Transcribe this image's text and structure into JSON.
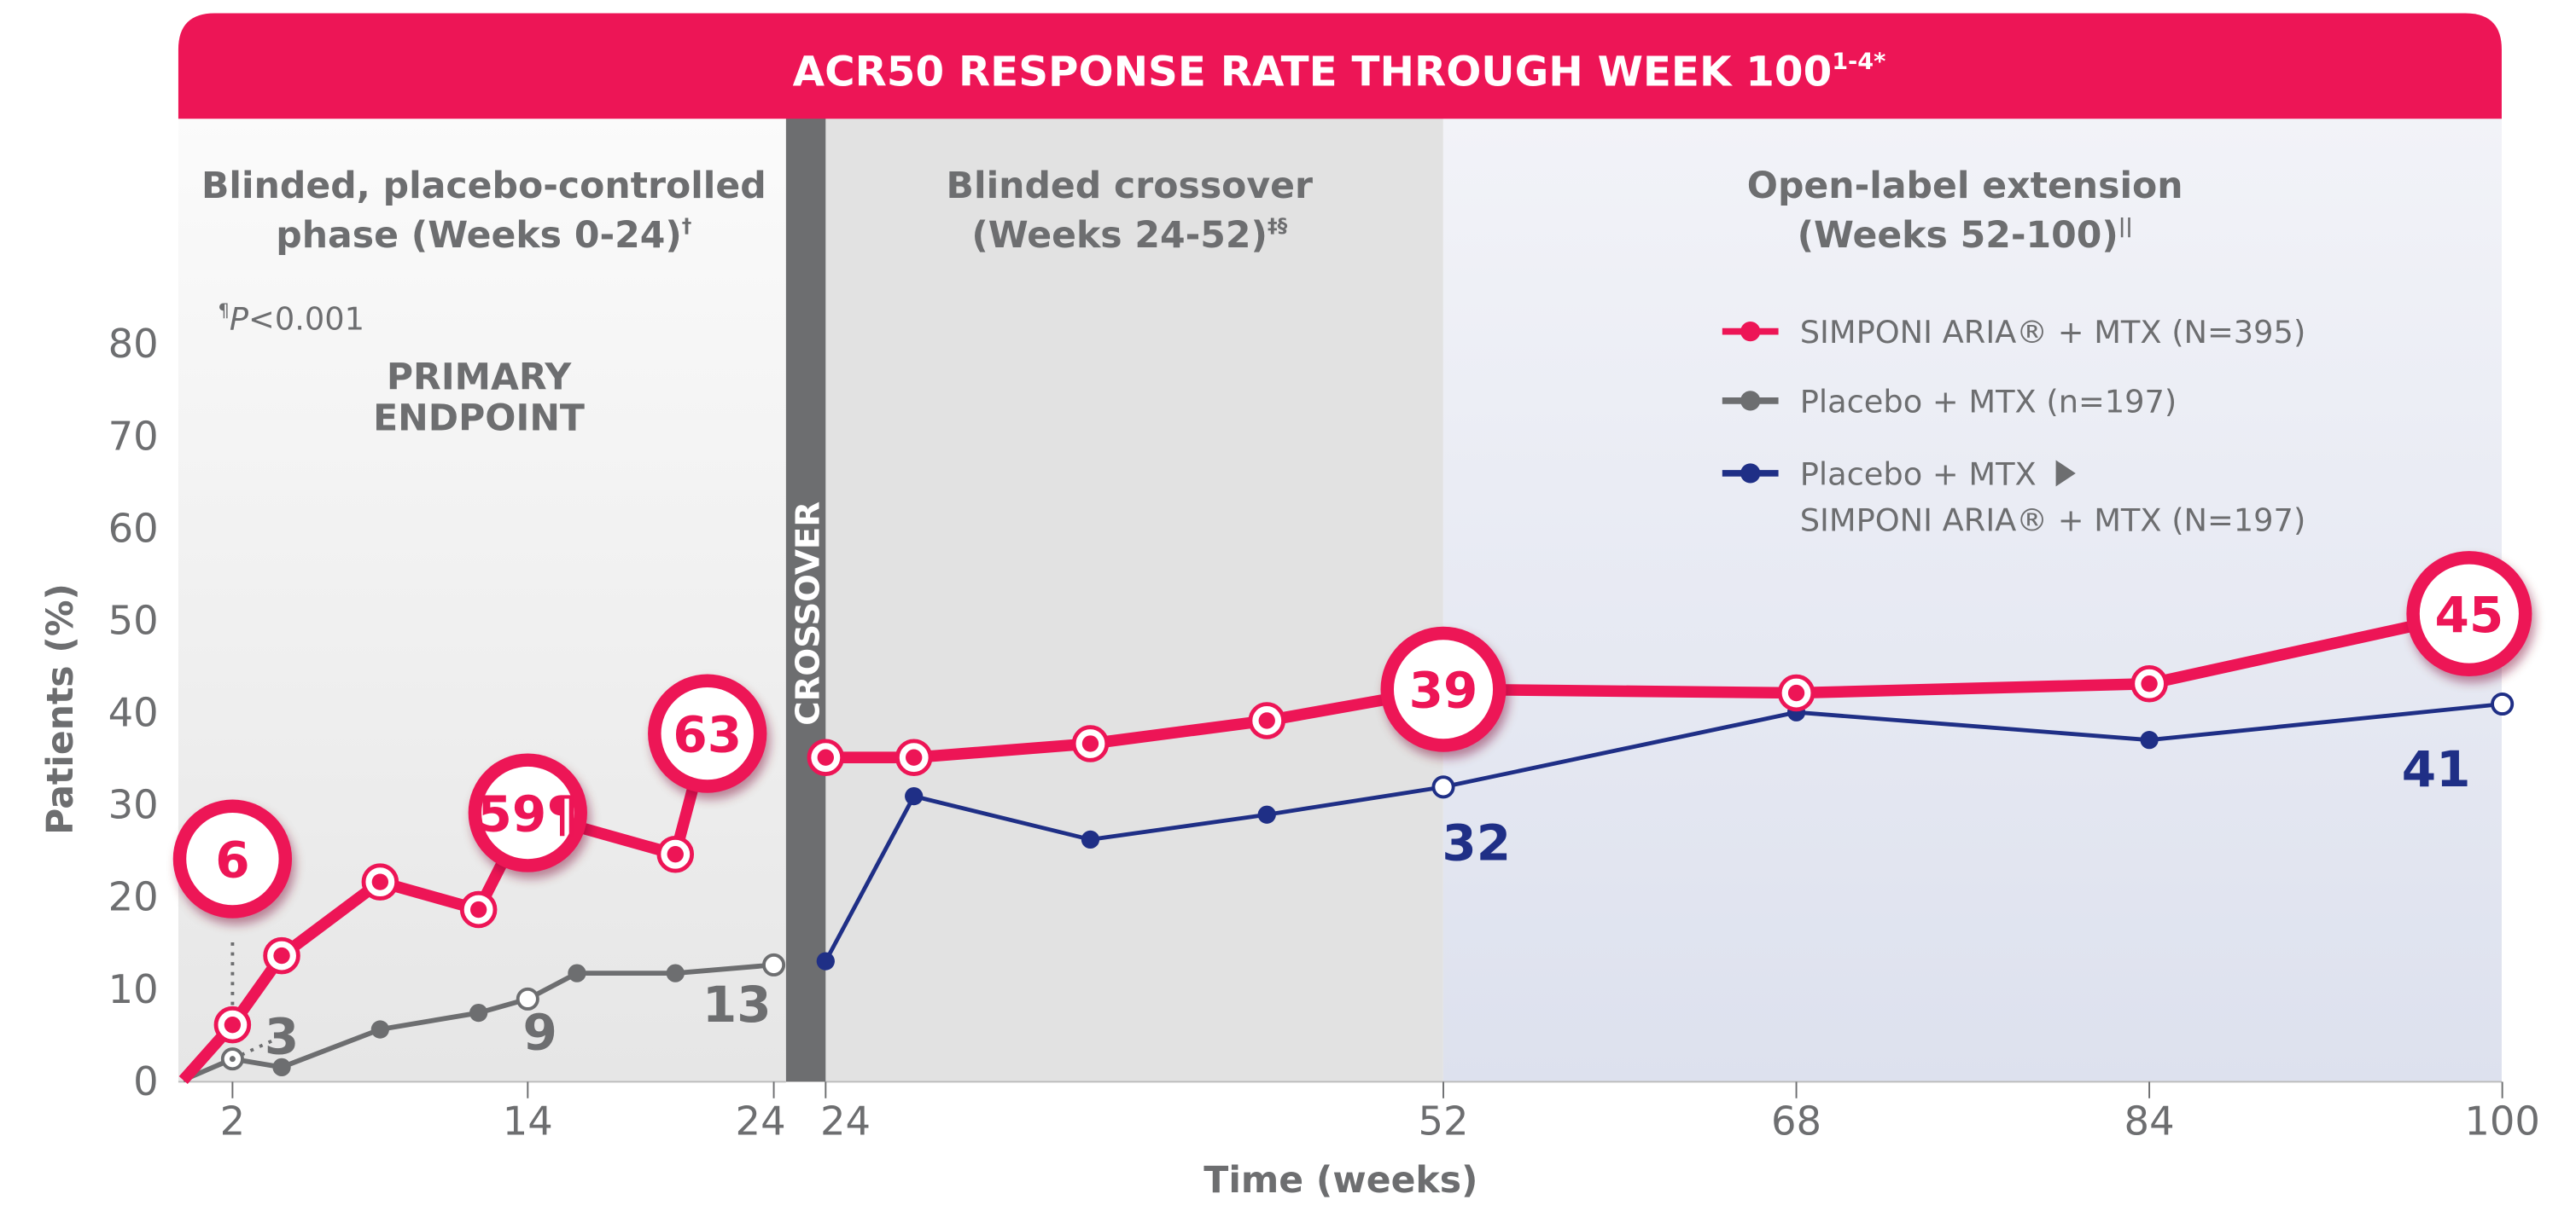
{
  "chart_data": {
    "type": "line",
    "title": "ACR50 RESPONSE RATE THROUGH WEEK 100",
    "title_superscript": "1-4*",
    "xlabel": "Time (weeks)",
    "ylabel": "Patients (%)",
    "ylim": [
      0,
      80
    ],
    "y_ticks": [
      "0",
      "10",
      "20",
      "30",
      "40",
      "50",
      "60",
      "70",
      "80"
    ],
    "x_ticks_left": [
      "2",
      "14",
      "24"
    ],
    "x_ticks_right": [
      "24",
      "52",
      "68",
      "84",
      "100"
    ],
    "grid": false,
    "legend_placement": "top-right",
    "phases": [
      {
        "title_line1": "Blinded, placebo-controlled",
        "title_line2": "phase (Weeks 0-24)",
        "sup": "†",
        "weeks": [
          0,
          24
        ]
      },
      {
        "title_line1": "Blinded crossover",
        "title_line2": "(Weeks 24-52)",
        "sup": "‡§",
        "weeks": [
          24,
          52
        ]
      },
      {
        "title_line1": "Open-label extension",
        "title_line2": "(Weeks 52-100)",
        "sup": "||",
        "weeks": [
          52,
          100
        ]
      }
    ],
    "crossover_label": "CROSSOVER",
    "pvalue_note": {
      "sup": "¶",
      "p": "P",
      "text": "<0.001"
    },
    "primary_endpoint": [
      "PRIMARY",
      "ENDPOINT"
    ],
    "series": [
      {
        "name": "SIMPONI ARIA® + MTX (N=395)",
        "color": "#ED1556",
        "left": [
          [
            0,
            0
          ],
          [
            2,
            6
          ],
          [
            4,
            13.5
          ],
          [
            8,
            21.5
          ],
          [
            12,
            18.5
          ],
          [
            20,
            24.5
          ]
        ],
        "right": [
          [
            24,
            35
          ],
          [
            28,
            35
          ],
          [
            36,
            36.5
          ],
          [
            44,
            39
          ],
          [
            68,
            42
          ],
          [
            84,
            43
          ]
        ]
      },
      {
        "name": "Placebo + MTX (n=197)",
        "color": "#6D6E70",
        "left": [
          [
            0,
            0
          ],
          [
            2,
            2.3
          ],
          [
            4,
            1.4
          ],
          [
            8,
            5.5
          ],
          [
            12,
            7.3
          ],
          [
            14,
            8.8
          ],
          [
            16,
            11.6
          ],
          [
            20,
            11.6
          ],
          [
            24,
            12.5
          ]
        ]
      },
      {
        "name": "Placebo + MTX ▶ SIMPONI ARIA® + MTX (N=197)",
        "color": "#1F2F86",
        "right": [
          [
            24,
            12.9
          ],
          [
            28,
            30.8
          ],
          [
            36,
            26.1
          ],
          [
            44,
            28.8
          ],
          [
            52,
            31.8
          ],
          [
            68,
            39.9
          ],
          [
            84,
            36.9
          ],
          [
            100,
            40.8
          ]
        ]
      }
    ],
    "legend": [
      {
        "label": "SIMPONI ARIA® + MTX (N=395)",
        "color": "#ED1556"
      },
      {
        "label": "Placebo + MTX (n=197)",
        "color": "#6D6E70"
      },
      {
        "label": "Placebo + MTX",
        "label2": "SIMPONI ARIA® + MTX (N=197)",
        "color": "#1F2F86"
      }
    ],
    "callouts": [
      {
        "label": "6",
        "week": 2,
        "y": 24,
        "segment": "left"
      },
      {
        "label": "59¶",
        "week": 14,
        "y": 29,
        "segment": "left"
      },
      {
        "label": "63",
        "week": 21.3,
        "y": 37.6,
        "segment": "left"
      },
      {
        "label": "39",
        "week": 52,
        "y": 42.4,
        "segment": "right"
      },
      {
        "label": "45",
        "week": 98.5,
        "y": 50.6,
        "segment": "right"
      }
    ],
    "value_labels": [
      {
        "label": "3",
        "week": 4,
        "y": 5,
        "color": "#6D6E70",
        "segment": "left"
      },
      {
        "label": "9",
        "week": 14.5,
        "y": 5.5,
        "color": "#6D6E70",
        "segment": "left"
      },
      {
        "label": "13",
        "week": 22.5,
        "y": 8.5,
        "color": "#6D6E70",
        "segment": "left"
      },
      {
        "label": "32",
        "week": 53.5,
        "y": 26,
        "color": "#1F2F86",
        "segment": "right"
      },
      {
        "label": "41",
        "week": 97,
        "y": 34,
        "color": "#1F2F86",
        "segment": "right"
      }
    ]
  }
}
